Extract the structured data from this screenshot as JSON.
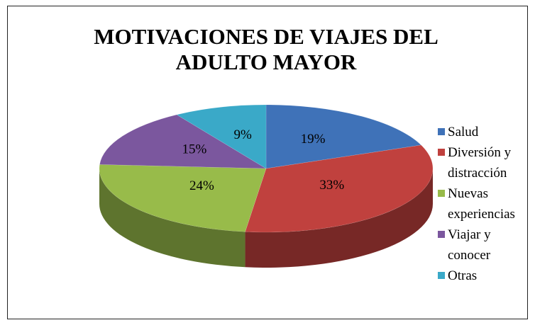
{
  "chart_data": {
    "type": "pie",
    "title": "MOTIVACIONES DE VIAJES DEL ADULTO MAYOR",
    "categories": [
      "Salud",
      "Diversión y distracción",
      "Nuevas experiencias",
      "Viajar y conocer",
      "Otras"
    ],
    "values": [
      19,
      33,
      24,
      15,
      9
    ],
    "value_labels": [
      "19%",
      "33%",
      "24%",
      "15%",
      "9%"
    ],
    "colors": [
      "#3f72b8",
      "#c0413e",
      "#98bb4a",
      "#7b579e",
      "#3aa9c8"
    ],
    "legend": "right"
  }
}
